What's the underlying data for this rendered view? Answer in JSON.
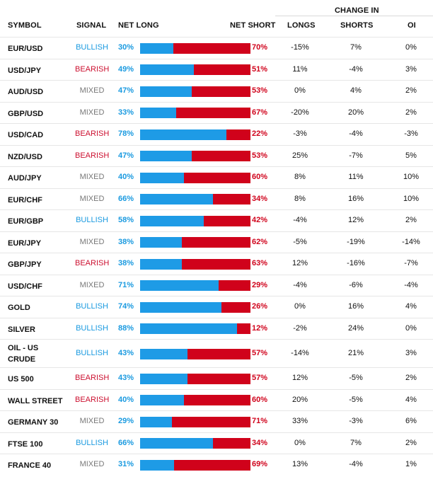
{
  "header": {
    "change_in": "CHANGE IN",
    "symbol": "SYMBOL",
    "signal": "SIGNAL",
    "net_long": "NET LONG",
    "net_short": "NET SHORT",
    "longs": "LONGS",
    "shorts": "SHORTS",
    "oi": "OI"
  },
  "colors": {
    "bullish": "#1a9ae0",
    "bearish": "#cc1030",
    "mixed": "#777777",
    "long_bar": "#1e9be6",
    "short_bar": "#d0021b"
  },
  "rows": [
    {
      "symbol": "EUR/USD",
      "signal": "BULLISH",
      "net_long": "30%",
      "net_short": "70%",
      "long_fraction": 0.3,
      "longs": "-15%",
      "shorts": "7%",
      "oi": "0%"
    },
    {
      "symbol": "USD/JPY",
      "signal": "BEARISH",
      "net_long": "49%",
      "net_short": "51%",
      "long_fraction": 0.49,
      "longs": "11%",
      "shorts": "-4%",
      "oi": "3%"
    },
    {
      "symbol": "AUD/USD",
      "signal": "MIXED",
      "net_long": "47%",
      "net_short": "53%",
      "long_fraction": 0.47,
      "longs": "0%",
      "shorts": "4%",
      "oi": "2%"
    },
    {
      "symbol": "GBP/USD",
      "signal": "MIXED",
      "net_long": "33%",
      "net_short": "67%",
      "long_fraction": 0.33,
      "longs": "-20%",
      "shorts": "20%",
      "oi": "2%"
    },
    {
      "symbol": "USD/CAD",
      "signal": "BEARISH",
      "net_long": "78%",
      "net_short": "22%",
      "long_fraction": 0.78,
      "longs": "-3%",
      "shorts": "-4%",
      "oi": "-3%"
    },
    {
      "symbol": "NZD/USD",
      "signal": "BEARISH",
      "net_long": "47%",
      "net_short": "53%",
      "long_fraction": 0.47,
      "longs": "25%",
      "shorts": "-7%",
      "oi": "5%"
    },
    {
      "symbol": "AUD/JPY",
      "signal": "MIXED",
      "net_long": "40%",
      "net_short": "60%",
      "long_fraction": 0.4,
      "longs": "8%",
      "shorts": "11%",
      "oi": "10%"
    },
    {
      "symbol": "EUR/CHF",
      "signal": "MIXED",
      "net_long": "66%",
      "net_short": "34%",
      "long_fraction": 0.66,
      "longs": "8%",
      "shorts": "16%",
      "oi": "10%"
    },
    {
      "symbol": "EUR/GBP",
      "signal": "BULLISH",
      "net_long": "58%",
      "net_short": "42%",
      "long_fraction": 0.58,
      "longs": "-4%",
      "shorts": "12%",
      "oi": "2%"
    },
    {
      "symbol": "EUR/JPY",
      "signal": "MIXED",
      "net_long": "38%",
      "net_short": "62%",
      "long_fraction": 0.38,
      "longs": "-5%",
      "shorts": "-19%",
      "oi": "-14%"
    },
    {
      "symbol": "GBP/JPY",
      "signal": "BEARISH",
      "net_long": "38%",
      "net_short": "63%",
      "long_fraction": 0.38,
      "longs": "12%",
      "shorts": "-16%",
      "oi": "-7%"
    },
    {
      "symbol": "USD/CHF",
      "signal": "MIXED",
      "net_long": "71%",
      "net_short": "29%",
      "long_fraction": 0.71,
      "longs": "-4%",
      "shorts": "-6%",
      "oi": "-4%"
    },
    {
      "symbol": "GOLD",
      "signal": "BULLISH",
      "net_long": "74%",
      "net_short": "26%",
      "long_fraction": 0.74,
      "longs": "0%",
      "shorts": "16%",
      "oi": "4%"
    },
    {
      "symbol": "SILVER",
      "signal": "BULLISH",
      "net_long": "88%",
      "net_short": "12%",
      "long_fraction": 0.88,
      "longs": "-2%",
      "shorts": "24%",
      "oi": "0%"
    },
    {
      "symbol": "OIL - US CRUDE",
      "signal": "BULLISH",
      "net_long": "43%",
      "net_short": "57%",
      "long_fraction": 0.43,
      "longs": "-14%",
      "shorts": "21%",
      "oi": "3%"
    },
    {
      "symbol": "US 500",
      "signal": "BEARISH",
      "net_long": "43%",
      "net_short": "57%",
      "long_fraction": 0.43,
      "longs": "12%",
      "shorts": "-5%",
      "oi": "2%"
    },
    {
      "symbol": "WALL STREET",
      "signal": "BEARISH",
      "net_long": "40%",
      "net_short": "60%",
      "long_fraction": 0.4,
      "longs": "20%",
      "shorts": "-5%",
      "oi": "4%"
    },
    {
      "symbol": "GERMANY 30",
      "signal": "MIXED",
      "net_long": "29%",
      "net_short": "71%",
      "long_fraction": 0.29,
      "longs": "33%",
      "shorts": "-3%",
      "oi": "6%"
    },
    {
      "symbol": "FTSE 100",
      "signal": "BULLISH",
      "net_long": "66%",
      "net_short": "34%",
      "long_fraction": 0.66,
      "longs": "0%",
      "shorts": "7%",
      "oi": "2%"
    },
    {
      "symbol": "FRANCE 40",
      "signal": "MIXED",
      "net_long": "31%",
      "net_short": "69%",
      "long_fraction": 0.31,
      "longs": "13%",
      "shorts": "-4%",
      "oi": "1%"
    }
  ]
}
